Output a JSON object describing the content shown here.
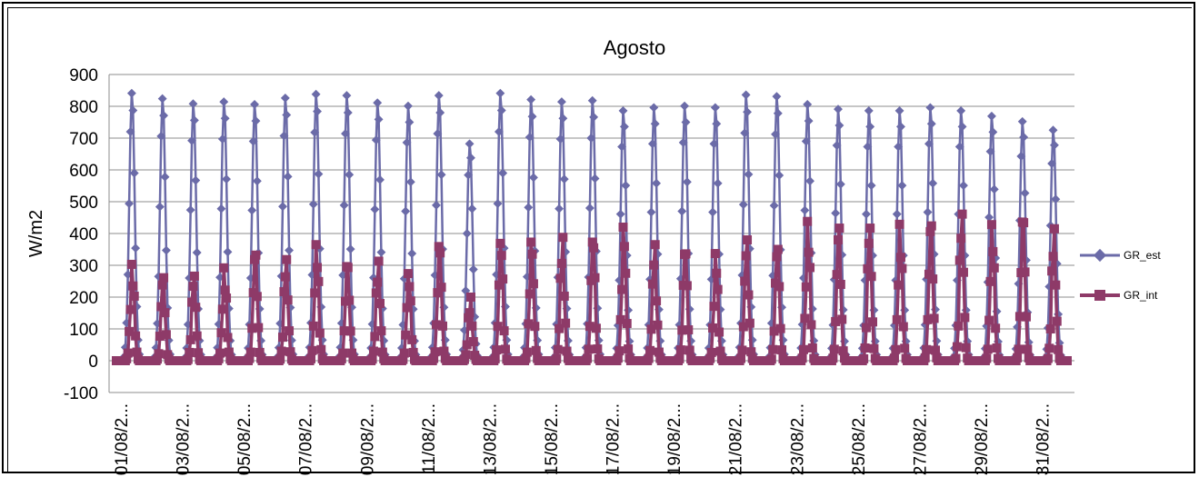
{
  "chart_data": {
    "type": "line",
    "title": "Agosto",
    "xlabel": "",
    "ylabel": "W/m2",
    "ylim": [
      -100,
      900
    ],
    "yticks": [
      -100,
      0,
      100,
      200,
      300,
      400,
      500,
      600,
      700,
      800,
      900
    ],
    "grid": true,
    "legend_position": "right",
    "x_tick_labels": [
      "01/08/2...",
      "03/08/2...",
      "05/08/2...",
      "07/08/2...",
      "09/08/2...",
      "11/08/2...",
      "13/08/2...",
      "15/08/2...",
      "17/08/2...",
      "19/08/2...",
      "21/08/2...",
      "23/08/2...",
      "25/08/2...",
      "27/08/2...",
      "29/08/2...",
      "31/08/2..."
    ],
    "x_unit": "hourly samples, 1-31 August",
    "series": [
      {
        "name": "GR_est",
        "color": "#6B6BA8",
        "marker": "diamond",
        "daily_peak": [
          845,
          828,
          812,
          818,
          810,
          830,
          842,
          838,
          815,
          805,
          838,
          685,
          845,
          825,
          818,
          822,
          790,
          800,
          805,
          800,
          840,
          835,
          810,
          795,
          790,
          790,
          800,
          790,
          772,
          755,
          728
        ]
      },
      {
        "name": "GR_int",
        "color": "#8E3A68",
        "marker": "square",
        "daily_peak": [
          318,
          282,
          290,
          308,
          365,
          340,
          388,
          330,
          332,
          295,
          392,
          210,
          405,
          400,
          408,
          418,
          445,
          385,
          385,
          355,
          405,
          390,
          460,
          450,
          455,
          452,
          465,
          495,
          455,
          488,
          440
        ]
      }
    ]
  }
}
